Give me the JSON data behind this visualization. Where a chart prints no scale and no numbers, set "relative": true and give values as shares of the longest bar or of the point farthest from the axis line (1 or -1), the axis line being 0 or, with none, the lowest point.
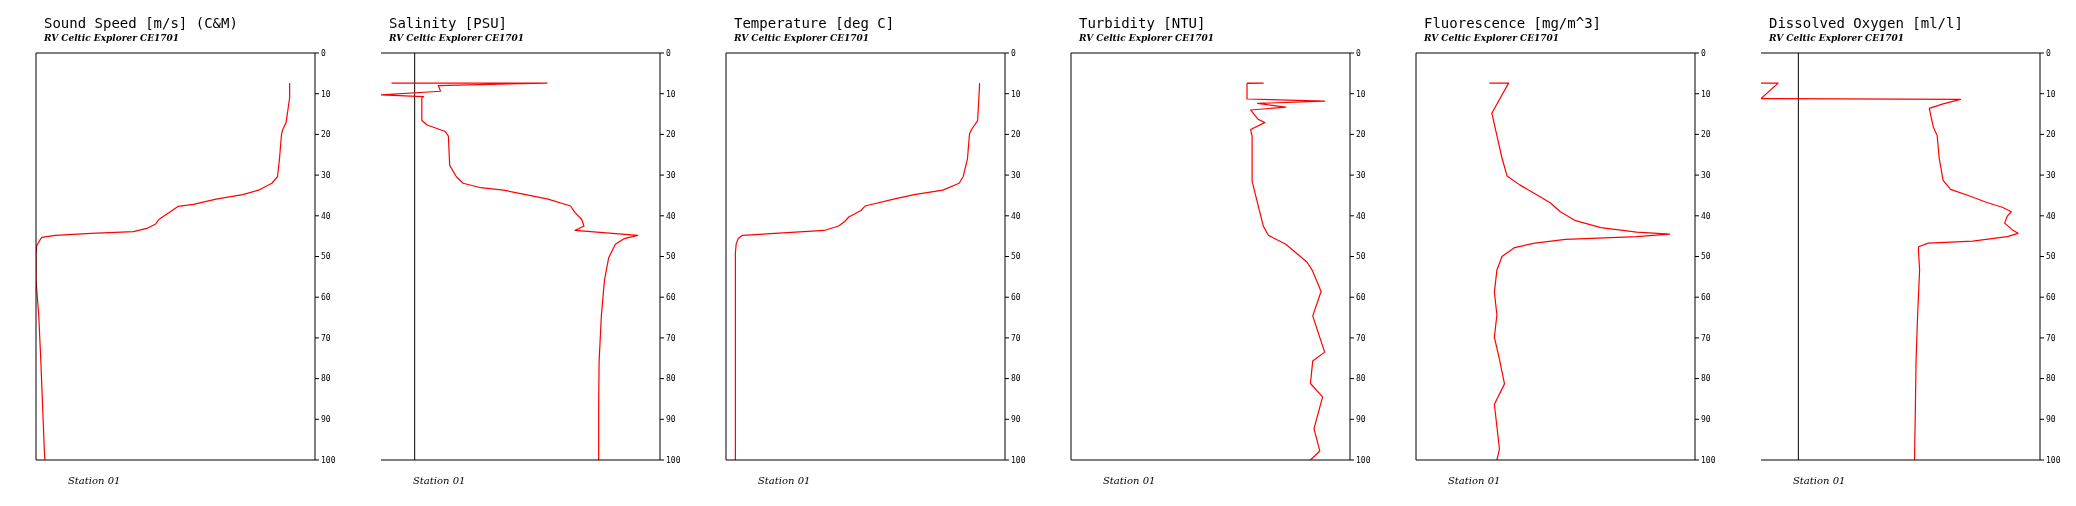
{
  "chart_data": [
    {
      "type": "line",
      "title": "Sound Speed [m/s] (C&M)",
      "subtitle": "RV Celtic Explorer CE1701",
      "annotations": [
        "Station 01"
      ],
      "relative": true,
      "orientation": "horizontal",
      "color": "#ff0000",
      "ylim": [
        100,
        0
      ],
      "yticks": [
        0,
        10,
        20,
        30,
        40,
        50,
        60,
        70,
        80,
        90,
        100
      ],
      "tick_labels": "y",
      "x": [
        7.4,
        9.4,
        11.0,
        17.1,
        18.8,
        19.9,
        26.0,
        30.4,
        32.0,
        33.7,
        34.8,
        35.9,
        37.2,
        37.7,
        39.2,
        40.9,
        42.0,
        43.1,
        43.9,
        44.3,
        44.8,
        45.3,
        46.1,
        47.5,
        49.7,
        55.8,
        64.6,
        75.7,
        86.7,
        97.8,
        100
      ],
      "values": [
        1,
        1,
        1,
        0.986,
        0.973,
        0.968,
        0.96,
        0.952,
        0.93,
        0.877,
        0.815,
        0.71,
        0.621,
        0.56,
        0.525,
        0.484,
        0.472,
        0.437,
        0.384,
        0.217,
        0.076,
        0.023,
        0.014,
        0.002,
        0,
        0,
        0.011,
        0.019,
        0.026,
        0.033,
        0.035
      ]
    },
    {
      "type": "line",
      "title": "Salinity [PSU]",
      "subtitle": "RV Celtic Explorer CE1701",
      "annotations": [
        "Station 01"
      ],
      "relative": true,
      "orientation": "horizontal",
      "color": "#ff0000",
      "ylim": [
        100,
        0
      ],
      "yticks": [
        0,
        10,
        20,
        30,
        40,
        50,
        60,
        70,
        80,
        90,
        100
      ],
      "tick_labels": "y",
      "x": [
        7.4,
        7.4,
        8.0,
        9.4,
        10.3,
        10.7,
        11.1,
        16.6,
        17.7,
        19.3,
        20.4,
        27.6,
        30.4,
        32.0,
        33.1,
        33.7,
        34.8,
        35.9,
        37.6,
        39.2,
        40.9,
        42.5,
        43.6,
        44.2,
        44.8,
        45.6,
        47.0,
        50.3,
        55.8,
        64.6,
        75.7,
        86.7,
        100
      ],
      "values": [
        -0.104,
        0.594,
        0.106,
        0.116,
        -0.151,
        0.04,
        0.032,
        0.032,
        0.056,
        0.137,
        0.151,
        0.157,
        0.187,
        0.217,
        0.297,
        0.398,
        0.498,
        0.598,
        0.699,
        0.719,
        0.749,
        0.759,
        0.719,
        0.859,
        1,
        0.94,
        0.9,
        0.87,
        0.851,
        0.837,
        0.827,
        0.825,
        0.825
      ]
    },
    {
      "type": "line",
      "title": "Temperature [deg C]",
      "subtitle": "RV Celtic Explorer CE1701",
      "annotations": [
        "Station 01"
      ],
      "relative": true,
      "orientation": "horizontal",
      "color": "#ff0000",
      "ylim": [
        100,
        0
      ],
      "yticks": [
        0,
        10,
        20,
        30,
        40,
        50,
        60,
        70,
        80,
        90,
        100
      ],
      "tick_labels": "y",
      "x": [
        7.4,
        11.0,
        16.6,
        18.8,
        19.9,
        26.0,
        30.4,
        32.0,
        33.7,
        34.8,
        35.9,
        37.6,
        38.7,
        40.3,
        41.4,
        42.5,
        43.6,
        44.2,
        44.8,
        45.6,
        47.0,
        49.2,
        100
      ],
      "values": [
        1,
        0.997,
        0.992,
        0.968,
        0.96,
        0.952,
        0.935,
        0.919,
        0.855,
        0.742,
        0.661,
        0.548,
        0.532,
        0.484,
        0.468,
        0.444,
        0.387,
        0.226,
        0.065,
        0.048,
        0.04,
        0.037,
        0.037
      ]
    },
    {
      "type": "line",
      "title": "Turbidity [NTU]",
      "subtitle": "RV Celtic Explorer CE1701",
      "annotations": [
        "Station 01"
      ],
      "relative": true,
      "orientation": "horizontal",
      "color": "#ff0000",
      "ylim": [
        100,
        0
      ],
      "yticks": [
        0,
        10,
        20,
        30,
        40,
        50,
        60,
        70,
        80,
        90,
        100
      ],
      "tick_labels": "y",
      "x": [
        7.4,
        7.4,
        7.5,
        11.3,
        11.8,
        12.4,
        13.3,
        14.0,
        16.2,
        17.1,
        18.8,
        20.4,
        31.5,
        37.0,
        42.5,
        44.8,
        47.0,
        49.2,
        51.4,
        53.6,
        58.6,
        64.6,
        73.5,
        75.7,
        81.2,
        84.5,
        92.3,
        97.8,
        100
      ],
      "values": [
        0.694,
        0.758,
        0.694,
        0.694,
        1,
        0.736,
        0.847,
        0.708,
        0.736,
        0.764,
        0.708,
        0.714,
        0.714,
        0.736,
        0.758,
        0.778,
        0.847,
        0.889,
        0.931,
        0.953,
        0.986,
        0.953,
        1,
        0.953,
        0.944,
        0.992,
        0.958,
        0.981,
        0.944
      ]
    },
    {
      "type": "line",
      "title": "Fluorescence [mg/m^3]",
      "subtitle": "RV Celtic Explorer CE1701",
      "annotations": [
        "Station 01"
      ],
      "relative": true,
      "orientation": "horizontal",
      "color": "#ff0000",
      "ylim": [
        100,
        0
      ],
      "yticks": [
        0,
        10,
        20,
        30,
        40,
        50,
        60,
        70,
        80,
        90,
        100
      ],
      "tick_labels": "y",
      "x": [
        7.4,
        7.4,
        14.8,
        20.3,
        25.8,
        30.2,
        32.4,
        34.6,
        36.8,
        39.0,
        41.2,
        42.9,
        44.0,
        44.5,
        45.1,
        45.8,
        46.7,
        47.8,
        50.0,
        53.3,
        58.8,
        64.3,
        69.8,
        75.3,
        81.3,
        86.3,
        91.8,
        97.3,
        100
      ],
      "values": [
        0.289,
        0.365,
        0.299,
        0.319,
        0.339,
        0.359,
        0.409,
        0.469,
        0.529,
        0.569,
        0.629,
        0.729,
        0.87,
        1,
        0.87,
        0.589,
        0.469,
        0.389,
        0.339,
        0.319,
        0.309,
        0.319,
        0.309,
        0.329,
        0.349,
        0.309,
        0.319,
        0.329,
        0.319
      ]
    },
    {
      "type": "line",
      "title": "Dissolved Oxygen [ml/l]",
      "subtitle": "RV Celtic Explorer CE1701",
      "annotations": [
        "Station 01"
      ],
      "relative": true,
      "orientation": "horizontal",
      "color": "#ff0000",
      "ylim": [
        100,
        0
      ],
      "yticks": [
        0,
        10,
        20,
        30,
        40,
        50,
        60,
        70,
        80,
        90,
        100
      ],
      "tick_labels": "y",
      "x": [
        7.4,
        7.4,
        9.0,
        11.2,
        11.4,
        12.5,
        13.6,
        18.1,
        20.3,
        25.8,
        31.3,
        33.5,
        35.2,
        36.8,
        37.9,
        39.0,
        40.1,
        41.8,
        43.4,
        44.3,
        45.1,
        46.2,
        46.7,
        47.6,
        48.9,
        53.3,
        64.3,
        75.3,
        100
      ],
      "values": [
        -0.17,
        -0.092,
        null,
        -0.17,
        0.738,
        0.659,
        0.596,
        0.614,
        0.632,
        0.641,
        0.659,
        0.693,
        0.783,
        0.861,
        0.928,
        0.969,
        0.951,
        0.939,
        0.973,
        1,
        0.951,
        0.794,
        0.592,
        0.547,
        0.547,
        0.552,
        0.543,
        0.536,
        0.529
      ]
    }
  ]
}
